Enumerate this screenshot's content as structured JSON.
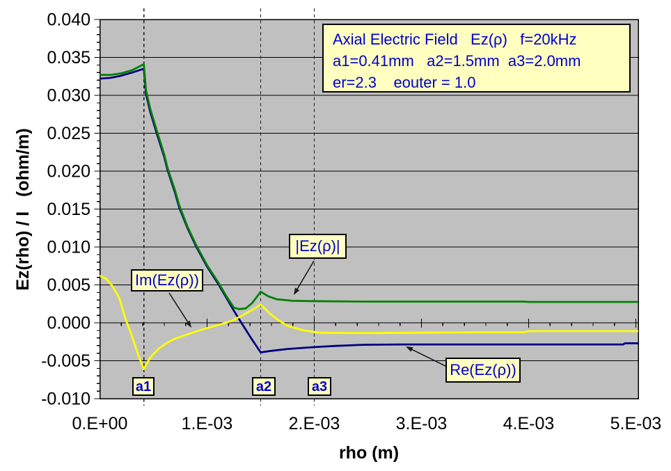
{
  "chart_data": {
    "type": "line",
    "title_box": {
      "line1": "Axial Electric Field   Ez(ρ)   f=20kHz",
      "line2": "a1=0.41mm   a2=1.5mm  a3=2.0mm",
      "line3": "er=2.3    eouter = 1.0"
    },
    "xlabel": "rho (m)",
    "ylabel": "Ez(rho) / I   (ohm/m)",
    "xlim": [
      0,
      0.005
    ],
    "ylim": [
      -0.01,
      0.04
    ],
    "grid": "horizontal-major",
    "legend_position": "callout-boxes",
    "x_ticks": {
      "values": [
        0,
        0.001,
        0.002,
        0.003,
        0.004,
        0.005
      ],
      "labels": [
        "0.E+00",
        "1.E-03",
        "2.E-03",
        "3.E-03",
        "4.E-03",
        "5.E-03"
      ],
      "minor_step": 0.0002
    },
    "y_ticks": {
      "values": [
        0.04,
        0.035,
        0.03,
        0.025,
        0.02,
        0.015,
        0.01,
        0.005,
        0.0,
        -0.005,
        -0.01
      ],
      "labels": [
        "0.040",
        "0.035",
        "0.030",
        "0.025",
        "0.020",
        "0.015",
        "0.010",
        "0.005",
        "0.000",
        "-0.005",
        "-0.010"
      ],
      "minor_step": 0.001
    },
    "markers": [
      {
        "label": "a1",
        "x": 0.00041
      },
      {
        "label": "a2",
        "x": 0.0015
      },
      {
        "label": "a3",
        "x": 0.002
      }
    ],
    "style": {
      "plot_bg": "#C0C0C0",
      "grid_color": "#000000",
      "marker_line_color": "#1a1a1a",
      "box_fill": "#FFFFC0",
      "box_text": "#0000CC",
      "box_border": "#000000",
      "arrow_color": "#1a1a1a"
    },
    "series": [
      {
        "name": "Re(Ez(ρ))",
        "color": "#000080",
        "points": [
          [
            0.0,
            0.0322
          ],
          [
            0.0001,
            0.0323
          ],
          [
            0.0002,
            0.0326
          ],
          [
            0.0003,
            0.033
          ],
          [
            0.00041,
            0.0335
          ],
          [
            0.00043,
            0.0302
          ],
          [
            0.00047,
            0.0278
          ],
          [
            0.00053,
            0.025
          ],
          [
            0.0006,
            0.0219
          ],
          [
            0.00063,
            0.0202
          ],
          [
            0.0007,
            0.0172
          ],
          [
            0.00074,
            0.0152
          ],
          [
            0.00082,
            0.0124
          ],
          [
            0.0009,
            0.01
          ],
          [
            0.001,
            0.0074
          ],
          [
            0.00111,
            0.005
          ],
          [
            0.00118,
            0.0033
          ],
          [
            0.00125,
            0.0016
          ],
          [
            0.00132,
            0.0
          ],
          [
            0.00141,
            -0.002
          ],
          [
            0.0015,
            -0.0039
          ],
          [
            0.0016,
            -0.0037
          ],
          [
            0.00175,
            -0.00345
          ],
          [
            0.002,
            -0.0032
          ],
          [
            0.0022,
            -0.00305
          ],
          [
            0.00245,
            -0.0029
          ],
          [
            0.0028,
            -0.00285
          ],
          [
            0.0035,
            -0.00285
          ],
          [
            0.0044,
            -0.00285
          ],
          [
            0.00488,
            -0.00285
          ],
          [
            0.0049,
            -0.0027
          ],
          [
            0.00502,
            -0.0027
          ]
        ]
      },
      {
        "name": "Im(Ez(ρ))",
        "color": "#FFFF00",
        "points": [
          [
            0.0,
            0.0062
          ],
          [
            6e-05,
            0.0058
          ],
          [
            0.00012,
            0.0048
          ],
          [
            0.00018,
            0.0033
          ],
          [
            0.00024,
            0.0005
          ],
          [
            0.0003,
            -0.0018
          ],
          [
            0.00036,
            -0.0043
          ],
          [
            0.00041,
            -0.0061
          ],
          [
            0.00044,
            -0.0053
          ],
          [
            0.00048,
            -0.0044
          ],
          [
            0.00055,
            -0.0034
          ],
          [
            0.00062,
            -0.0027
          ],
          [
            0.0007,
            -0.0021
          ],
          [
            0.00084,
            -0.0014
          ],
          [
            0.001,
            -0.0007
          ],
          [
            0.0011,
            -0.0003
          ],
          [
            0.00122,
            0.0002
          ],
          [
            0.00132,
            0.0009
          ],
          [
            0.00142,
            0.0017
          ],
          [
            0.0015,
            0.0024
          ],
          [
            0.00158,
            0.0013
          ],
          [
            0.00165,
            0.0005
          ],
          [
            0.00175,
            -0.0004
          ],
          [
            0.0019,
            -0.001
          ],
          [
            0.00205,
            -0.0013
          ],
          [
            0.0023,
            -0.00135
          ],
          [
            0.0026,
            -0.00135
          ],
          [
            0.003,
            -0.0013
          ],
          [
            0.0035,
            -0.00125
          ],
          [
            0.00395,
            -0.00125
          ],
          [
            0.004,
            -0.0011
          ],
          [
            0.00502,
            -0.0011
          ]
        ]
      },
      {
        "name": "|Ez(ρ)|",
        "color": "#008000",
        "points": [
          [
            0.0,
            0.0327
          ],
          [
            0.0001,
            0.0327
          ],
          [
            0.0002,
            0.0329
          ],
          [
            0.0003,
            0.0333
          ],
          [
            0.00041,
            0.0341
          ],
          [
            0.00043,
            0.0307
          ],
          [
            0.00047,
            0.0282
          ],
          [
            0.00053,
            0.0254
          ],
          [
            0.0006,
            0.0222
          ],
          [
            0.00063,
            0.0205
          ],
          [
            0.0007,
            0.0175
          ],
          [
            0.00074,
            0.0155
          ],
          [
            0.00082,
            0.0126
          ],
          [
            0.0009,
            0.0102
          ],
          [
            0.001,
            0.0076
          ],
          [
            0.00111,
            0.0052
          ],
          [
            0.00118,
            0.0035
          ],
          [
            0.00125,
            0.002
          ],
          [
            0.0013,
            0.0018
          ],
          [
            0.00136,
            0.0019
          ],
          [
            0.00142,
            0.0026
          ],
          [
            0.0015,
            0.0041
          ],
          [
            0.00157,
            0.0035
          ],
          [
            0.00165,
            0.0031
          ],
          [
            0.0018,
            0.0029
          ],
          [
            0.002,
            0.00285
          ],
          [
            0.0025,
            0.0028
          ],
          [
            0.003,
            0.0028
          ],
          [
            0.00395,
            0.0028
          ],
          [
            0.004,
            0.00275
          ],
          [
            0.00502,
            0.00275
          ]
        ]
      }
    ],
    "callout_labels": {
      "mag": "|Ez(ρ)|",
      "im": "Im(Ez(ρ))",
      "re": "Re(Ez(ρ))"
    }
  }
}
